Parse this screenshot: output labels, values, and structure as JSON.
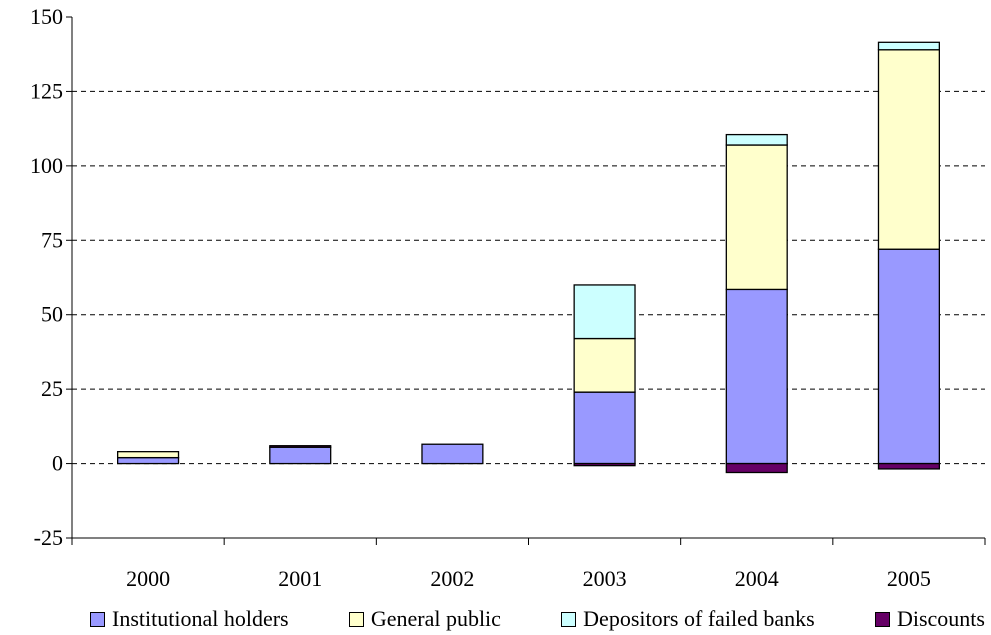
{
  "chart_data": {
    "type": "bar",
    "stacked": true,
    "categories": [
      "2000",
      "2001",
      "2002",
      "2003",
      "2004",
      "2005"
    ],
    "series": [
      {
        "name": "Institutional holders",
        "color": "#9999ff",
        "values": [
          2,
          5.5,
          6.5,
          24,
          58.5,
          72
        ]
      },
      {
        "name": "General public",
        "color": "#ffffcc",
        "values": [
          2,
          0,
          0,
          18,
          48.5,
          67
        ]
      },
      {
        "name": "Depositors of failed banks",
        "color": "#ccffff",
        "values": [
          0,
          0,
          0,
          18,
          3.5,
          2.5
        ]
      },
      {
        "name": "Discounts",
        "color": "#660066",
        "values": [
          0,
          0.5,
          0,
          -0.7,
          -3,
          -1.8
        ]
      }
    ],
    "ylim": [
      -25,
      150
    ],
    "yticks": [
      -25,
      0,
      25,
      50,
      75,
      100,
      125,
      150
    ],
    "grid": true,
    "legend_position": "bottom"
  }
}
